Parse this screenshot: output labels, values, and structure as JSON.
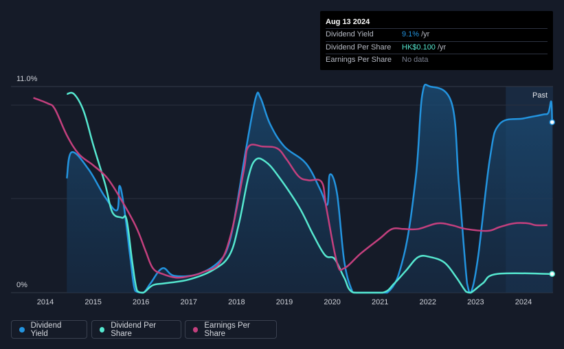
{
  "tooltip": {
    "date": "Aug 13 2024",
    "rows": [
      {
        "label": "Dividend Yield",
        "value": "9.1%",
        "unit": "/yr"
      },
      {
        "label": "Dividend Per Share",
        "value": "HK$0.100",
        "unit": "/yr"
      },
      {
        "label": "Earnings Per Share",
        "value": "No data",
        "unit": ""
      }
    ]
  },
  "legend": [
    {
      "label": "Dividend Yield",
      "color": "#2394df"
    },
    {
      "label": "Dividend Per Share",
      "color": "#56e8d0"
    },
    {
      "label": "Earnings Per Share",
      "color": "#c4407e"
    }
  ],
  "chart_data": {
    "type": "line",
    "ylabel_top": "11.0%",
    "ylabel_bottom": "0%",
    "past_label": "Past",
    "ylim": [
      0,
      11
    ],
    "xlim": [
      2013.55,
      2024.62
    ],
    "forecast_start": 2023.63,
    "x_ticks": [
      "2014",
      "2015",
      "2016",
      "2017",
      "2018",
      "2019",
      "2020",
      "2021",
      "2022",
      "2023",
      "2024"
    ],
    "series": [
      {
        "name": "Dividend Yield",
        "color": "#2394df",
        "fill": true,
        "points": [
          [
            2014.45,
            6.1
          ],
          [
            2014.55,
            7.5
          ],
          [
            2014.9,
            6.6
          ],
          [
            2015.25,
            5.1
          ],
          [
            2015.5,
            4.4
          ],
          [
            2015.55,
            5.7
          ],
          [
            2015.65,
            4.5
          ],
          [
            2015.78,
            1.8
          ],
          [
            2015.88,
            0.1
          ],
          [
            2016.05,
            0.0
          ],
          [
            2016.2,
            0.5
          ],
          [
            2016.45,
            1.3
          ],
          [
            2016.7,
            0.9
          ],
          [
            2017.2,
            1.0
          ],
          [
            2017.65,
            1.7
          ],
          [
            2017.85,
            2.7
          ],
          [
            2018.0,
            4.6
          ],
          [
            2018.2,
            7.7
          ],
          [
            2018.4,
            10.4
          ],
          [
            2018.5,
            10.4
          ],
          [
            2018.7,
            9.0
          ],
          [
            2019.0,
            7.8
          ],
          [
            2019.45,
            6.9
          ],
          [
            2019.75,
            5.5
          ],
          [
            2019.9,
            4.7
          ],
          [
            2019.95,
            6.3
          ],
          [
            2020.1,
            5.3
          ],
          [
            2020.25,
            1.7
          ],
          [
            2020.4,
            0.2
          ],
          [
            2020.5,
            0.0
          ],
          [
            2021.15,
            0.0
          ],
          [
            2021.5,
            2.0
          ],
          [
            2021.75,
            6.2
          ],
          [
            2021.88,
            10.5
          ],
          [
            2022.05,
            11.0
          ],
          [
            2022.5,
            10.1
          ],
          [
            2022.65,
            5.8
          ],
          [
            2022.82,
            0.5
          ],
          [
            2022.9,
            0.0
          ],
          [
            2023.05,
            1.9
          ],
          [
            2023.3,
            7.2
          ],
          [
            2023.5,
            9.0
          ],
          [
            2024.0,
            9.3
          ],
          [
            2024.4,
            9.5
          ],
          [
            2024.52,
            9.6
          ],
          [
            2024.58,
            10.2
          ],
          [
            2024.6,
            9.1
          ]
        ]
      },
      {
        "name": "Dividend Per Share",
        "color": "#56e8d0",
        "fill": false,
        "points": [
          [
            2014.45,
            10.6
          ],
          [
            2014.6,
            10.6
          ],
          [
            2014.8,
            9.7
          ],
          [
            2015.0,
            7.9
          ],
          [
            2015.25,
            5.8
          ],
          [
            2015.4,
            4.3
          ],
          [
            2015.6,
            4.0
          ],
          [
            2015.7,
            3.9
          ],
          [
            2015.82,
            1.6
          ],
          [
            2015.92,
            0.1
          ],
          [
            2016.05,
            0.0
          ],
          [
            2016.25,
            0.4
          ],
          [
            2016.5,
            0.5
          ],
          [
            2017.0,
            0.7
          ],
          [
            2017.5,
            1.2
          ],
          [
            2017.85,
            2.0
          ],
          [
            2018.05,
            3.7
          ],
          [
            2018.25,
            6.2
          ],
          [
            2018.4,
            7.1
          ],
          [
            2018.6,
            7.0
          ],
          [
            2018.85,
            6.3
          ],
          [
            2019.3,
            4.6
          ],
          [
            2019.6,
            3.1
          ],
          [
            2019.85,
            2.0
          ],
          [
            2020.05,
            1.8
          ],
          [
            2020.25,
            0.8
          ],
          [
            2020.45,
            0.0
          ],
          [
            2021.05,
            0.0
          ],
          [
            2021.3,
            0.5
          ],
          [
            2021.55,
            1.2
          ],
          [
            2021.8,
            1.9
          ],
          [
            2022.05,
            1.9
          ],
          [
            2022.35,
            1.6
          ],
          [
            2022.6,
            0.8
          ],
          [
            2022.8,
            0.05
          ],
          [
            2022.9,
            0.0
          ],
          [
            2023.15,
            0.5
          ],
          [
            2023.45,
            1.0
          ],
          [
            2024.6,
            1.0
          ]
        ]
      },
      {
        "name": "Earnings Per Share",
        "color": "#c4407e",
        "fill": false,
        "points": [
          [
            2013.75,
            10.4
          ],
          [
            2014.05,
            10.1
          ],
          [
            2014.2,
            9.8
          ],
          [
            2014.45,
            8.4
          ],
          [
            2014.7,
            7.4
          ],
          [
            2015.0,
            6.8
          ],
          [
            2015.3,
            6.1
          ],
          [
            2015.6,
            4.9
          ],
          [
            2015.9,
            3.5
          ],
          [
            2016.1,
            2.2
          ],
          [
            2016.25,
            1.3
          ],
          [
            2016.45,
            1.0
          ],
          [
            2016.75,
            0.8
          ],
          [
            2017.05,
            0.9
          ],
          [
            2017.3,
            1.1
          ],
          [
            2017.65,
            1.6
          ],
          [
            2017.9,
            3.3
          ],
          [
            2018.15,
            6.5
          ],
          [
            2018.25,
            7.8
          ],
          [
            2018.55,
            7.8
          ],
          [
            2018.85,
            7.7
          ],
          [
            2019.05,
            7.1
          ],
          [
            2019.3,
            6.2
          ],
          [
            2019.5,
            6.0
          ],
          [
            2019.78,
            5.9
          ],
          [
            2019.88,
            4.5
          ],
          [
            2020.1,
            1.6
          ],
          [
            2020.25,
            1.3
          ],
          [
            2020.6,
            2.1
          ],
          [
            2021.0,
            2.9
          ],
          [
            2021.25,
            3.4
          ],
          [
            2021.5,
            3.4
          ],
          [
            2021.8,
            3.4
          ],
          [
            2022.2,
            3.7
          ],
          [
            2022.5,
            3.6
          ],
          [
            2022.8,
            3.4
          ],
          [
            2023.25,
            3.3
          ],
          [
            2023.5,
            3.5
          ],
          [
            2023.8,
            3.7
          ],
          [
            2024.1,
            3.7
          ],
          [
            2024.25,
            3.6
          ],
          [
            2024.5,
            3.6
          ]
        ]
      }
    ]
  }
}
